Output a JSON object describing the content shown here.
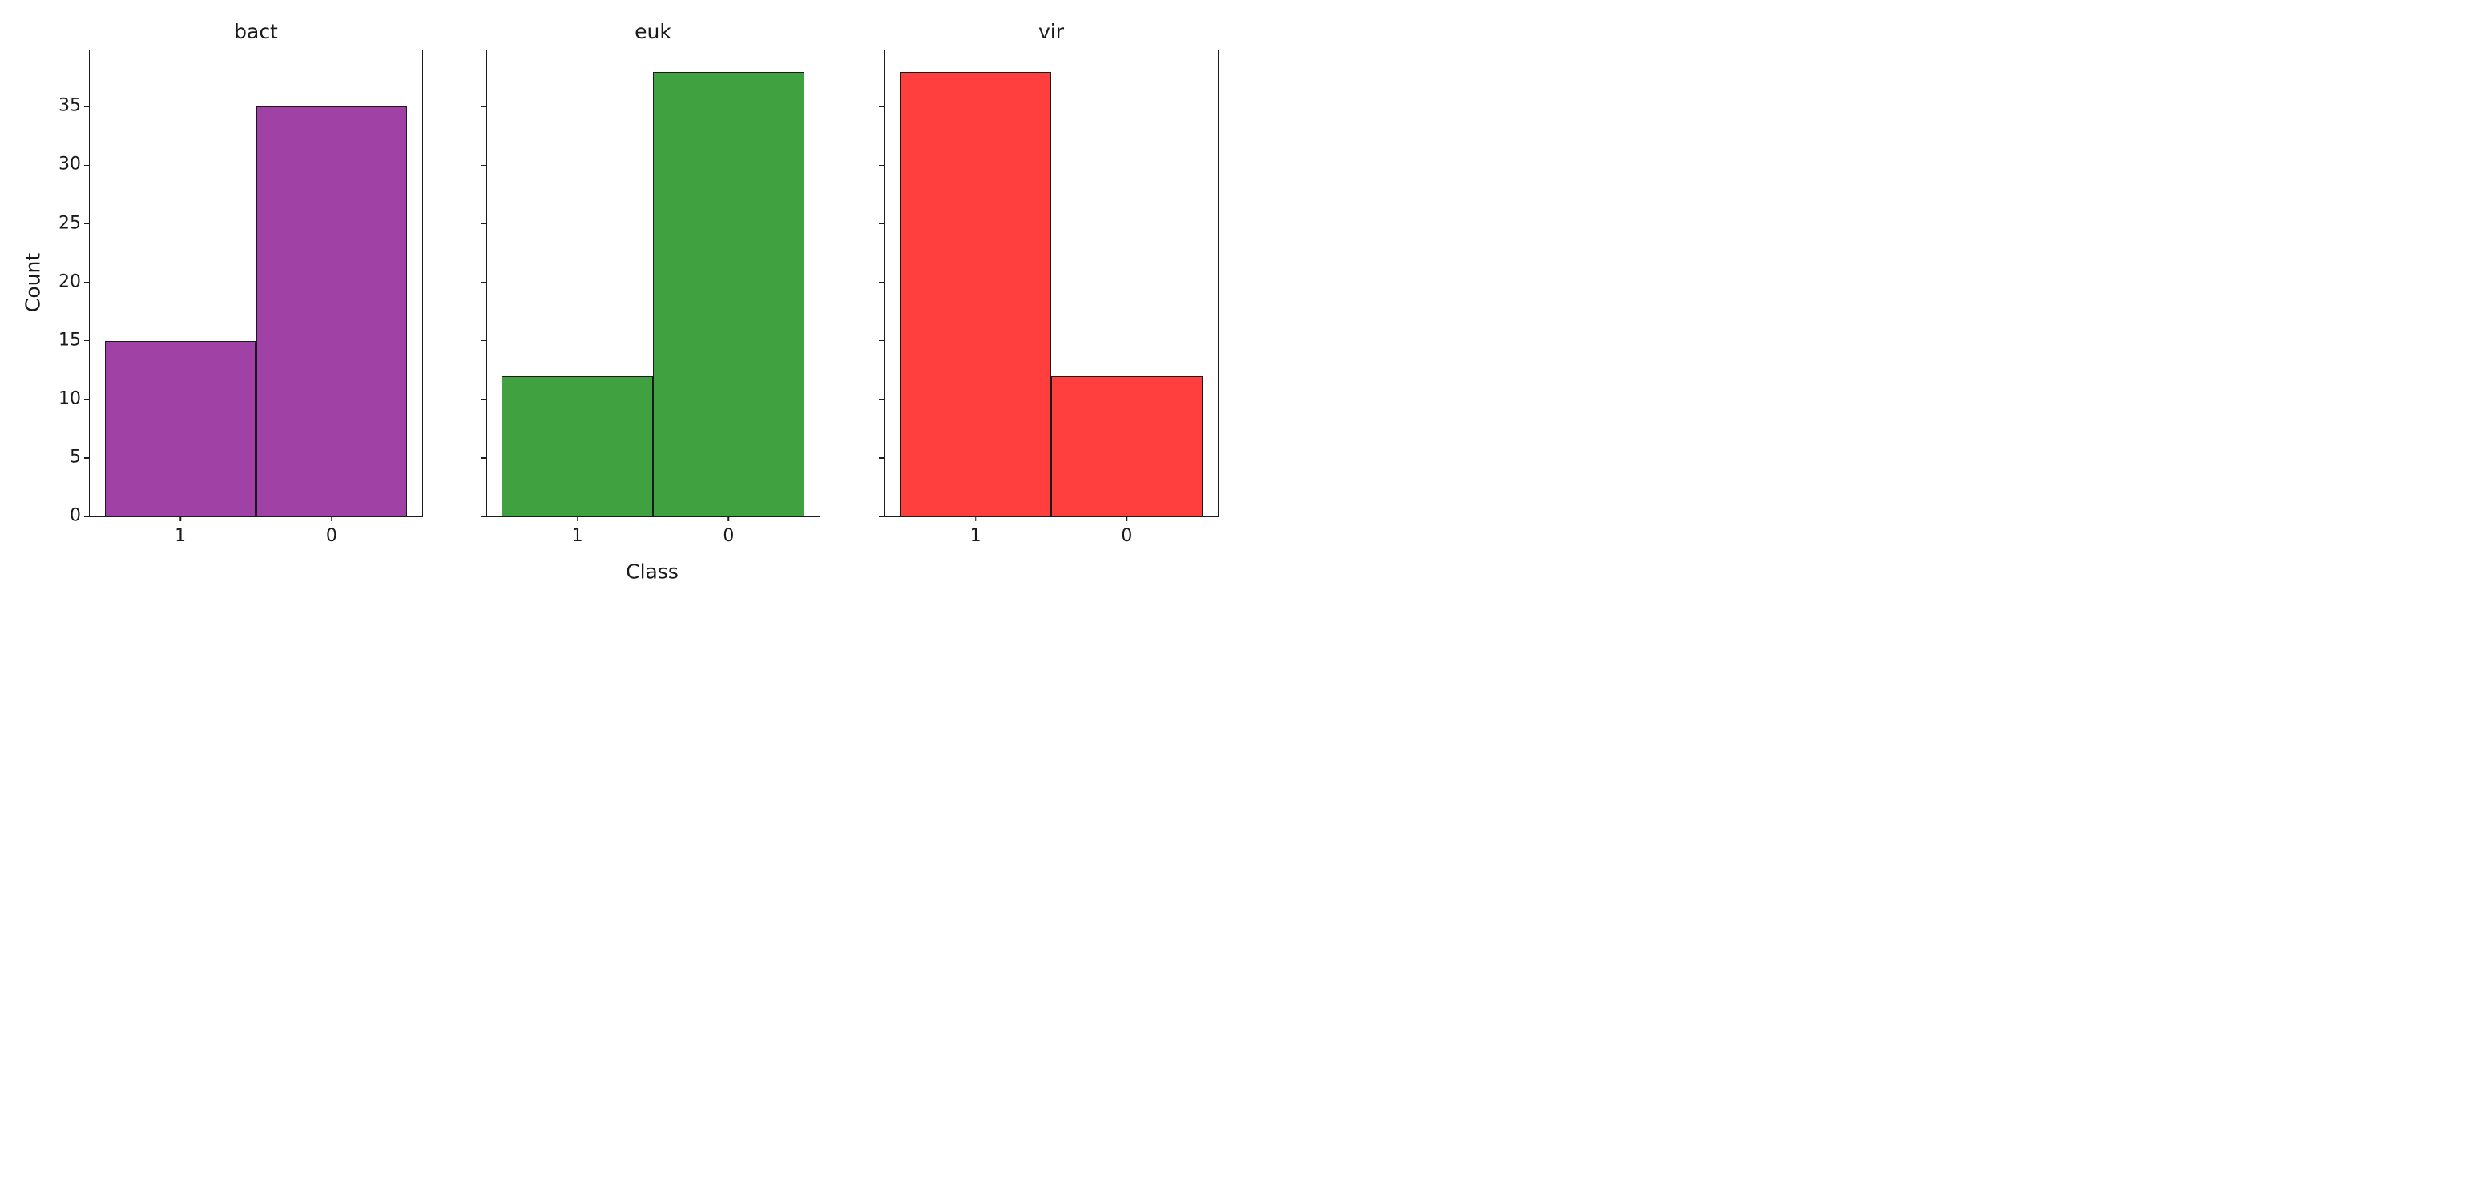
{
  "chart_data": {
    "type": "bar",
    "title": "",
    "xlabel": "Class",
    "ylabel": "Count",
    "categories": [
      "1",
      "0"
    ],
    "yticks": [
      0,
      5,
      10,
      15,
      20,
      25,
      30,
      35
    ],
    "ylim": [
      0,
      39.85
    ],
    "grid": false,
    "legend_position": "none",
    "bar_edge_color": "#1a1a1a",
    "subplots": [
      {
        "title": "bact",
        "color": "#a041a5",
        "values": [
          15,
          35
        ]
      },
      {
        "title": "euk",
        "color": "#3fa13f",
        "values": [
          12,
          38
        ]
      },
      {
        "title": "vir",
        "color": "#ff3e3e",
        "values": [
          38,
          12
        ]
      }
    ]
  }
}
